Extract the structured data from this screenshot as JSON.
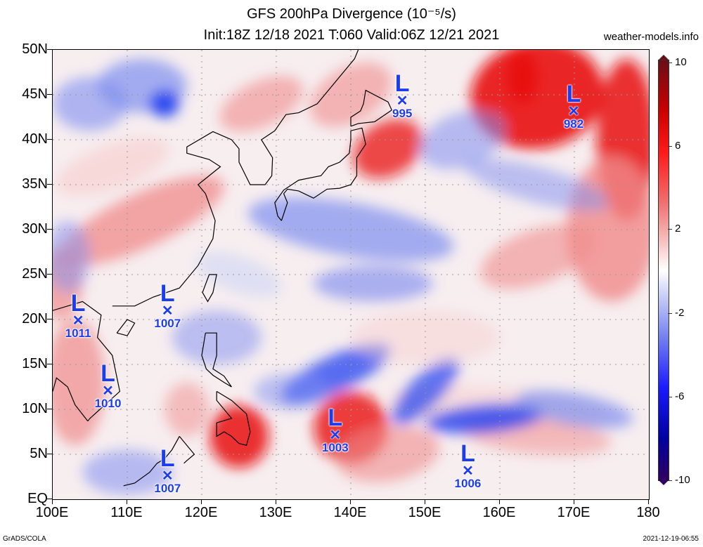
{
  "header": {
    "title_line1": "GFS 200hPa Divergence (10⁻⁵/s)",
    "title_line2": "Init:18Z 12/18 2021 T:060 Valid:06Z 12/21 2021",
    "site": "weather-models.info"
  },
  "axes": {
    "lat_labels": [
      "50N",
      "45N",
      "40N",
      "35N",
      "30N",
      "25N",
      "20N",
      "15N",
      "10N",
      "5N",
      "EQ"
    ],
    "lon_labels": [
      "100E",
      "110E",
      "120E",
      "130E",
      "140E",
      "150E",
      "160E",
      "170E",
      "180"
    ]
  },
  "colorbar": {
    "labels": [
      "10",
      "6",
      "2",
      "-2",
      "-6",
      "-10"
    ],
    "colors": [
      "#6a0d17",
      "#ff1a1a",
      "#f7c9c9",
      "#c9cff7",
      "#1a1aff",
      "#300060"
    ]
  },
  "map_data": {
    "lon_range": [
      100,
      180
    ],
    "lat_range": [
      0,
      50
    ],
    "lows": [
      {
        "lon": 147.0,
        "lat": 44.0,
        "pressure": "995"
      },
      {
        "lon": 170.0,
        "lat": 42.8,
        "pressure": "982"
      },
      {
        "lon": 115.5,
        "lat": 20.6,
        "pressure": "1007"
      },
      {
        "lon": 103.5,
        "lat": 19.5,
        "pressure": "1011"
      },
      {
        "lon": 107.5,
        "lat": 11.7,
        "pressure": "1010"
      },
      {
        "lon": 138.0,
        "lat": 6.8,
        "pressure": "1003"
      },
      {
        "lon": 155.8,
        "lat": 2.8,
        "pressure": "1006"
      },
      {
        "lon": 115.5,
        "lat": 2.3,
        "pressure": "1007"
      }
    ],
    "field_colors": {
      "strong_div": "#e81010",
      "div": "#f08a8a",
      "weak_div": "#f8d0d0",
      "neutral": "#f7f3f5",
      "weak_conv": "#cfd5f5",
      "conv": "#7f8ef0",
      "strong_conv": "#2040f0"
    }
  },
  "footer": {
    "left": "GrADS/COLA",
    "right": "2021-12-19-06:55"
  }
}
